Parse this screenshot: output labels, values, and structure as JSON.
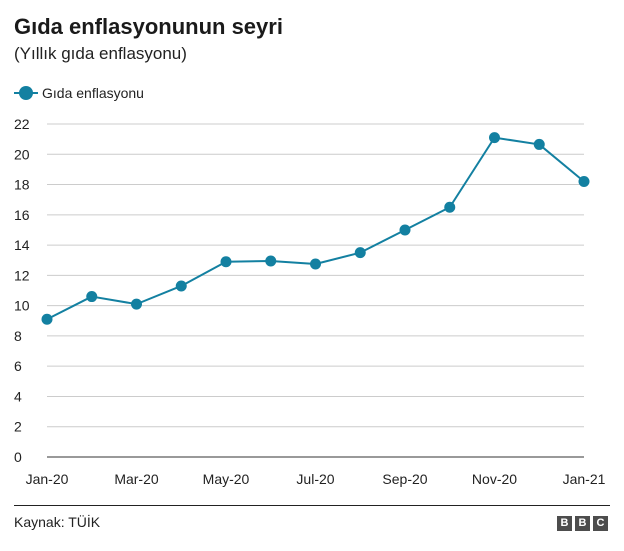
{
  "chart_data": {
    "type": "line",
    "title": "Gıda enflasyonunun seyri",
    "subtitle": "(Yıllık gıda enflasyonu)",
    "x": [
      "Jan-20",
      "Feb-20",
      "Mar-20",
      "Apr-20",
      "May-20",
      "Jun-20",
      "Jul-20",
      "Aug-20",
      "Sep-20",
      "Oct-20",
      "Nov-20",
      "Dec-20",
      "Jan-21"
    ],
    "x_tick_labels": [
      "Jan-20",
      "Mar-20",
      "May-20",
      "Jul-20",
      "Sep-20",
      "Nov-20",
      "Jan-21"
    ],
    "series": [
      {
        "name": "Gıda enflasyonu",
        "color": "#1380A1",
        "values": [
          9.1,
          10.6,
          10.1,
          11.3,
          12.9,
          12.95,
          12.75,
          13.5,
          15.0,
          16.5,
          21.1,
          20.65,
          18.2
        ]
      }
    ],
    "ylim": [
      0,
      22
    ],
    "y_ticks": [
      0,
      2,
      4,
      6,
      8,
      10,
      12,
      14,
      16,
      18,
      20,
      22
    ],
    "xlabel": "",
    "ylabel": "",
    "grid": true,
    "legend_position": "top-left"
  },
  "footer": {
    "source": "Kaynak: TÜİK",
    "logo_letters": [
      "B",
      "B",
      "C"
    ]
  }
}
